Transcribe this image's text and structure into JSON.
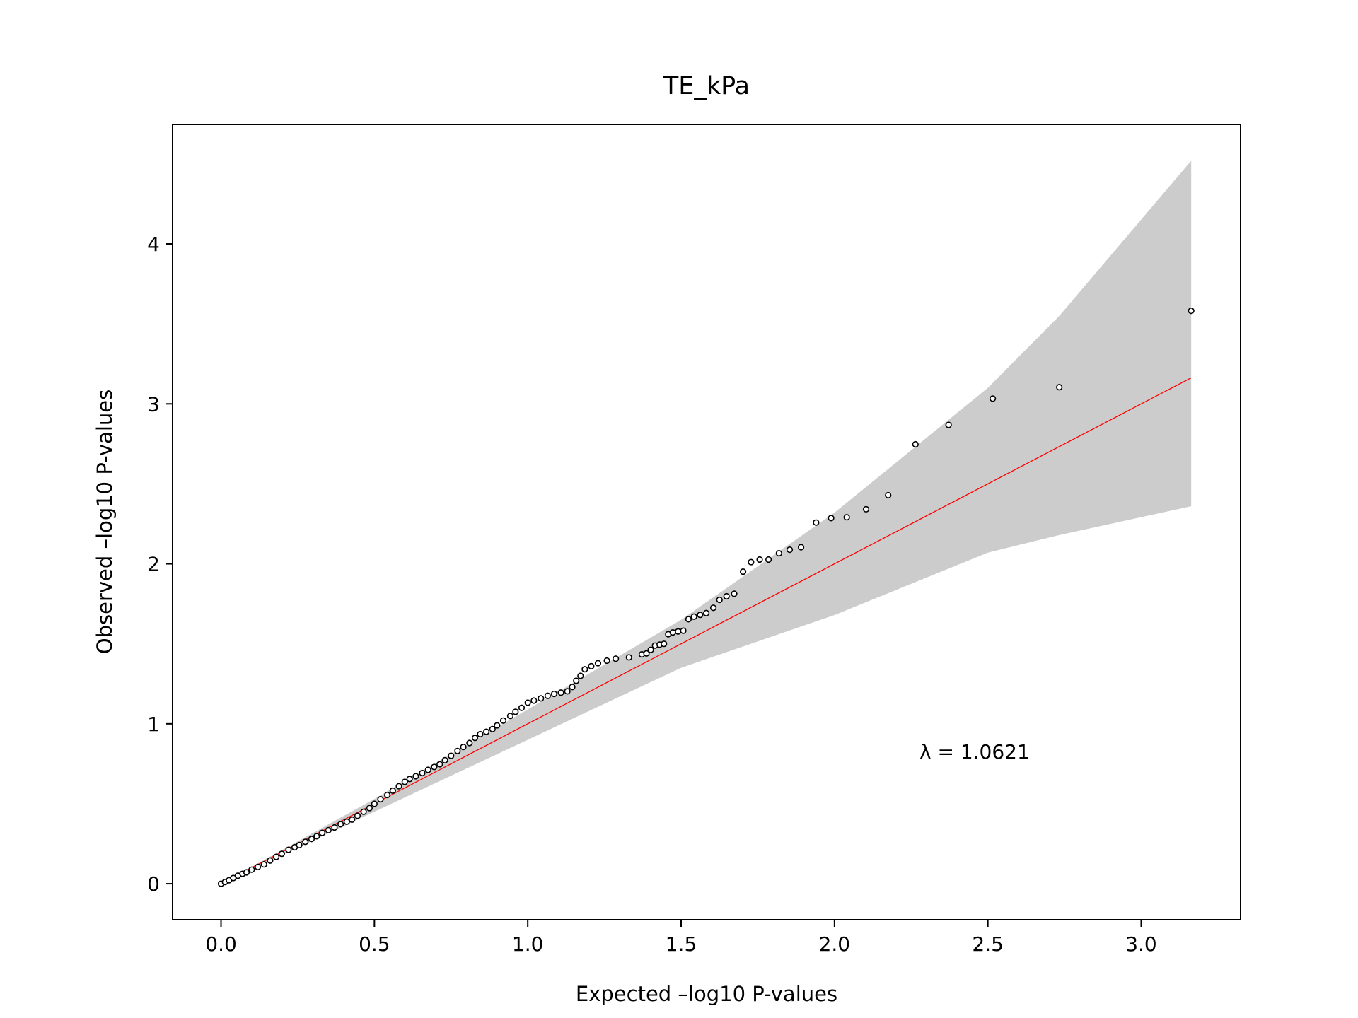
{
  "chart_data": {
    "type": "scatter",
    "title": "TE_kPa",
    "x_label": "Expected –log10 P-values",
    "y_label": "Observed –log10 P-values",
    "annotation": "λ = 1.0621",
    "xlim": [
      -0.158,
      3.324
    ],
    "ylim": [
      -0.225,
      4.747
    ],
    "xticks": [
      {
        "value": 0,
        "label": "0.0"
      },
      0.5,
      {
        "value": 1,
        "label": "1.0"
      },
      1.5,
      {
        "value": 2,
        "label": "2.0"
      },
      2.5,
      {
        "value": 3,
        "label": "3.0"
      }
    ],
    "yticks": [
      0,
      1,
      2,
      3,
      4
    ],
    "grid": false,
    "marker_color": "#000000",
    "x": [
      0,
      0.013,
      0.026,
      0.04,
      0.055,
      0.07,
      0.083,
      0.1,
      0.12,
      0.14,
      0.16,
      0.18,
      0.198,
      0.22,
      0.24,
      0.255,
      0.275,
      0.295,
      0.312,
      0.33,
      0.35,
      0.37,
      0.39,
      0.41,
      0.427,
      0.445,
      0.465,
      0.484,
      0.5,
      0.52,
      0.542,
      0.56,
      0.58,
      0.599,
      0.615,
      0.635,
      0.656,
      0.675,
      0.695,
      0.713,
      0.73,
      0.75,
      0.771,
      0.79,
      0.81,
      0.828,
      0.845,
      0.865,
      0.885,
      0.9,
      0.92,
      0.943,
      0.96,
      0.98,
      1.0,
      1.02,
      1.043,
      1.065,
      1.086,
      1.108,
      1.129,
      1.145,
      1.158,
      1.172,
      1.186,
      1.207,
      1.229,
      1.258,
      1.287,
      1.33,
      1.372,
      1.387,
      1.401,
      1.415,
      1.43,
      1.444,
      1.458,
      1.473,
      1.49,
      1.507,
      1.524,
      1.542,
      1.562,
      1.582,
      1.605,
      1.625,
      1.648,
      1.673,
      1.702,
      1.728,
      1.756,
      1.785,
      1.819,
      1.854,
      1.891,
      1.94,
      1.989,
      2.04,
      2.103,
      2.175,
      2.264,
      2.372,
      2.516,
      2.733,
      3.163
    ],
    "values": [
      0,
      0.011,
      0.022,
      0.036,
      0.05,
      0.062,
      0.071,
      0.088,
      0.105,
      0.121,
      0.145,
      0.168,
      0.187,
      0.212,
      0.228,
      0.242,
      0.262,
      0.28,
      0.297,
      0.318,
      0.335,
      0.352,
      0.372,
      0.388,
      0.401,
      0.425,
      0.45,
      0.473,
      0.5,
      0.528,
      0.555,
      0.582,
      0.61,
      0.637,
      0.655,
      0.672,
      0.692,
      0.712,
      0.73,
      0.747,
      0.772,
      0.8,
      0.83,
      0.855,
      0.88,
      0.912,
      0.935,
      0.95,
      0.967,
      0.99,
      1.02,
      1.049,
      1.075,
      1.1,
      1.132,
      1.145,
      1.159,
      1.175,
      1.187,
      1.195,
      1.203,
      1.23,
      1.269,
      1.3,
      1.341,
      1.36,
      1.379,
      1.395,
      1.407,
      1.415,
      1.434,
      1.44,
      1.462,
      1.489,
      1.495,
      1.5,
      1.56,
      1.571,
      1.577,
      1.582,
      1.654,
      1.67,
      1.681,
      1.692,
      1.725,
      1.775,
      1.797,
      1.813,
      1.951,
      2.011,
      2.027,
      2.027,
      2.066,
      2.088,
      2.104,
      2.258,
      2.286,
      2.291,
      2.341,
      2.429,
      2.747,
      2.868,
      3.033,
      3.104,
      3.582
    ],
    "reference_line": {
      "x": [
        0,
        3.163
      ],
      "values": [
        0,
        3.163
      ],
      "color": "#ff0000"
    },
    "band": {
      "color": "#cccccc",
      "x": [
        0,
        0.5,
        1.0,
        1.5,
        2.0,
        2.5,
        2.733,
        3.163
      ],
      "upper": [
        0,
        0.53,
        1.09,
        1.65,
        2.32,
        3.1,
        3.55,
        4.52
      ],
      "lower": [
        0,
        0.45,
        0.9,
        1.35,
        1.68,
        2.07,
        2.18,
        2.36
      ]
    }
  }
}
